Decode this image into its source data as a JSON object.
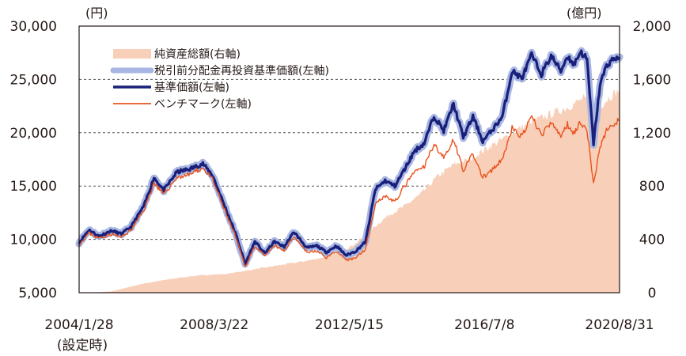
{
  "chart_data": {
    "type": "line+area",
    "title": "",
    "left_axis": {
      "unit": "(円)",
      "min": 5000,
      "max": 30000,
      "ticks": [
        "5,000",
        "10,000",
        "15,000",
        "20,000",
        "25,000",
        "30,000"
      ],
      "tick_values": [
        5000,
        10000,
        15000,
        20000,
        25000,
        30000
      ]
    },
    "right_axis": {
      "unit": "(億円)",
      "min": 0,
      "max": 2000,
      "ticks": [
        "0",
        "400",
        "800",
        "1,200",
        "1,600",
        "2,000"
      ],
      "tick_values": [
        0,
        400,
        800,
        1200,
        1600,
        2000
      ]
    },
    "x_axis": {
      "labels": [
        "2004/1/28",
        "2008/3/22",
        "2012/5/15",
        "2016/7/8",
        "2020/8/31"
      ],
      "positions_years": [
        0,
        4.15,
        8.3,
        12.45,
        16.6
      ],
      "first_label_note": "(設定時)",
      "range_years": [
        0,
        16.6
      ]
    },
    "grid": "dashed horizontal",
    "legend": {
      "placement": "top-left",
      "items": [
        {
          "label": "純資産総額(右軸)",
          "color": "#f8cfb8",
          "kind": "area"
        },
        {
          "label": "税引前分配金再投資基準価額(左軸)",
          "color": "#a7b6e2",
          "kind": "thick-line"
        },
        {
          "label": "基準価額(左軸)",
          "color": "#1a1f7a",
          "kind": "line"
        },
        {
          "label": "ベンチマーク(左軸)",
          "color": "#e8541f",
          "kind": "thin-line"
        }
      ]
    },
    "series": [
      {
        "name": "純資産総額(右軸)",
        "axis": "right",
        "x": [
          0,
          0.5,
          1.0,
          1.5,
          2.0,
          2.5,
          3.0,
          3.5,
          4.0,
          4.5,
          5.0,
          5.5,
          6.0,
          6.5,
          7.0,
          7.5,
          8.0,
          8.5,
          9.0,
          9.5,
          10.0,
          10.5,
          11.0,
          11.5,
          12.0,
          12.5,
          13.0,
          13.5,
          14.0,
          14.5,
          15.0,
          15.3,
          15.5,
          15.8,
          16.0,
          16.3,
          16.6
        ],
        "values": [
          0,
          3,
          10,
          40,
          70,
          90,
          110,
          125,
          135,
          140,
          160,
          180,
          200,
          220,
          240,
          265,
          300,
          370,
          480,
          580,
          650,
          740,
          870,
          960,
          1000,
          1080,
          1150,
          1230,
          1290,
          1340,
          1390,
          1430,
          1460,
          1350,
          1400,
          1470,
          1520
        ]
      },
      {
        "name": "税引前分配金再投資基準価額(左軸)",
        "axis": "left",
        "x": [
          0,
          0.3,
          0.6,
          1.0,
          1.3,
          1.6,
          2.0,
          2.3,
          2.6,
          3.0,
          3.4,
          3.8,
          4.1,
          4.5,
          4.8,
          5.1,
          5.4,
          5.7,
          6.0,
          6.3,
          6.6,
          7.0,
          7.3,
          7.6,
          7.9,
          8.2,
          8.5,
          8.8,
          9.1,
          9.4,
          9.7,
          10.0,
          10.3,
          10.6,
          10.9,
          11.2,
          11.5,
          11.8,
          12.1,
          12.4,
          12.7,
          13.0,
          13.3,
          13.6,
          13.9,
          14.2,
          14.5,
          14.8,
          15.0,
          15.2,
          15.4,
          15.6,
          15.8,
          16.0,
          16.2,
          16.4,
          16.6
        ],
        "values": [
          9700,
          10900,
          10300,
          10800,
          10500,
          11200,
          13200,
          15800,
          14600,
          16300,
          16600,
          17100,
          16000,
          12900,
          10600,
          7700,
          9800,
          8700,
          9800,
          9300,
          10700,
          9200,
          9400,
          8800,
          9400,
          8500,
          8900,
          9800,
          14700,
          15500,
          15000,
          16600,
          18300,
          19000,
          21600,
          20200,
          22700,
          19600,
          21500,
          19200,
          20300,
          21500,
          25800,
          25100,
          27300,
          25500,
          27200,
          25800,
          27200,
          26400,
          27600,
          26900,
          19000,
          24500,
          26300,
          26900,
          27100
        ]
      },
      {
        "name": "基準価額(左軸)",
        "axis": "left",
        "note": "nearly identical to reinvested series",
        "values_same_as": "税引前分配金再投資基準価額(左軸)"
      },
      {
        "name": "ベンチマーク(左軸)",
        "axis": "left",
        "x": [
          0,
          0.3,
          0.6,
          1.0,
          1.3,
          1.6,
          2.0,
          2.3,
          2.6,
          3.0,
          3.4,
          3.8,
          4.1,
          4.5,
          4.8,
          5.1,
          5.4,
          5.7,
          6.0,
          6.3,
          6.6,
          7.0,
          7.3,
          7.6,
          7.9,
          8.2,
          8.5,
          8.8,
          9.1,
          9.4,
          9.7,
          10.0,
          10.3,
          10.6,
          10.9,
          11.2,
          11.5,
          11.8,
          12.1,
          12.4,
          12.7,
          13.0,
          13.3,
          13.6,
          13.9,
          14.2,
          14.5,
          14.8,
          15.0,
          15.2,
          15.4,
          15.6,
          15.8,
          16.0,
          16.2,
          16.4,
          16.6
        ],
        "values": [
          9500,
          10600,
          10100,
          10500,
          10200,
          10900,
          12800,
          15300,
          14200,
          15800,
          16100,
          16700,
          15600,
          12500,
          10300,
          7400,
          9400,
          8400,
          9400,
          8900,
          10300,
          8800,
          8900,
          8300,
          8900,
          8000,
          8300,
          9100,
          13400,
          14100,
          13500,
          15000,
          16300,
          16800,
          19000,
          17600,
          19400,
          16500,
          18000,
          15800,
          16500,
          17500,
          20400,
          19600,
          21500,
          19800,
          20900,
          19700,
          20800,
          20000,
          21000,
          20300,
          15200,
          18600,
          20200,
          20800,
          21200
        ]
      }
    ]
  }
}
